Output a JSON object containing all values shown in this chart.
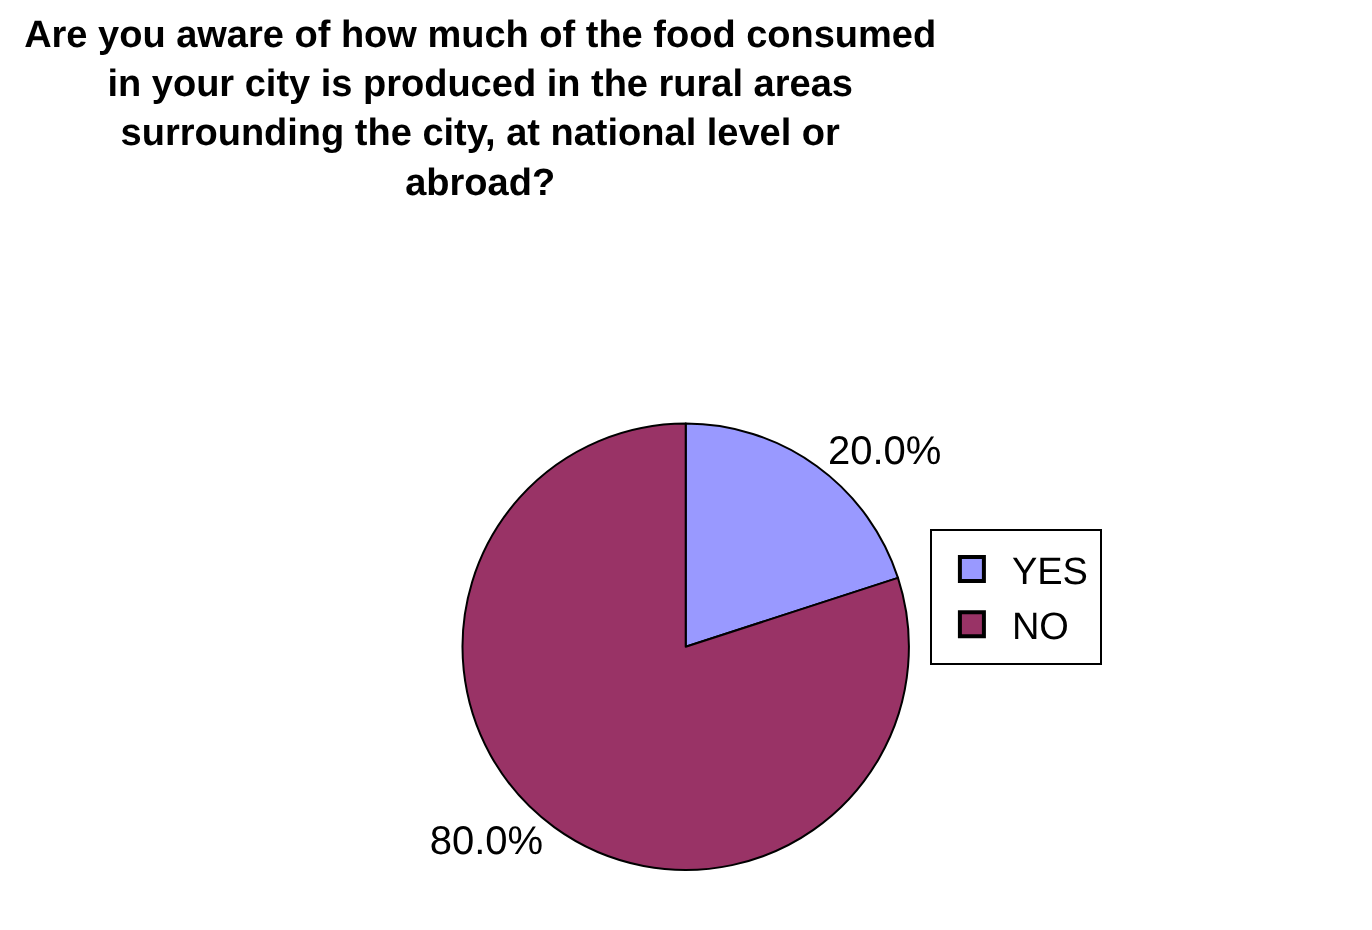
{
  "chart_data": {
    "type": "pie",
    "title": "Are you aware of how much of the food consumed in your city is produced in the rural areas surrounding the city, at national level or abroad?",
    "categories": [
      "YES",
      "NO"
    ],
    "values": [
      20,
      80
    ],
    "colors": [
      "#9999ff",
      "#993366"
    ],
    "value_labels": [
      "20.0%",
      "80.0%"
    ],
    "legend": "right"
  }
}
